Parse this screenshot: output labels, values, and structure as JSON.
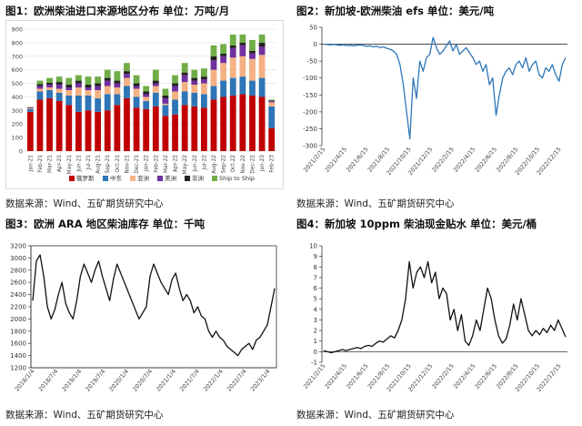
{
  "panels": [
    {
      "title": "图1：欧洲柴油进口来源地区分布  单位：万吨/月",
      "source": "数据来源：Wind、五矿期货研究中心"
    },
    {
      "title": "图2：新加坡-欧洲柴油 efs  单位：美元/吨",
      "source": "数据来源：Wind、五矿期货研究中心"
    },
    {
      "title": "图3：欧洲 ARA 地区柴油库存  单位：千吨",
      "source": "数据来源：Wind、五矿期货研究中心"
    },
    {
      "title": "图4：新加坡 10ppm 柴油现金贴水  单位：美元/桶",
      "source": "数据来源：Wind、五矿期货研究中心"
    }
  ],
  "chart_data": [
    {
      "type": "bar",
      "stacked": true,
      "categories": [
        "Jan-21",
        "Feb-21",
        "Mar-21",
        "Apr-21",
        "May-21",
        "Jun-21",
        "Jul-21",
        "Aug-21",
        "Sep-21",
        "Oct-21",
        "Nov-21",
        "Dec-21",
        "Jan-22",
        "Feb-22",
        "Mar-22",
        "Apr-22",
        "May-22",
        "Jun-22",
        "Jul-22",
        "Aug-22",
        "Sep-22",
        "Oct-22",
        "Nov-22",
        "Dec-22",
        "Jan-23",
        "Feb-23"
      ],
      "series": [
        {
          "name": "俄罗斯",
          "color": "#c00000",
          "values": [
            290,
            380,
            390,
            370,
            340,
            290,
            300,
            290,
            300,
            340,
            390,
            320,
            310,
            330,
            260,
            270,
            340,
            330,
            320,
            380,
            400,
            410,
            420,
            410,
            400,
            170
          ]
        },
        {
          "name": "中东",
          "color": "#2e75b6",
          "values": [
            20,
            60,
            60,
            60,
            70,
            120,
            110,
            100,
            120,
            80,
            90,
            80,
            60,
            100,
            80,
            110,
            100,
            100,
            100,
            100,
            120,
            130,
            130,
            110,
            140,
            160
          ]
        },
        {
          "name": "亚洲",
          "color": "#f4b183",
          "values": [
            5,
            20,
            20,
            30,
            40,
            60,
            40,
            60,
            60,
            50,
            60,
            60,
            30,
            50,
            10,
            60,
            70,
            60,
            80,
            120,
            130,
            150,
            150,
            160,
            170,
            30
          ]
        },
        {
          "name": "美洲",
          "color": "#7030a0",
          "values": [
            5,
            20,
            20,
            30,
            20,
            30,
            20,
            30,
            40,
            30,
            30,
            20,
            20,
            20,
            40,
            40,
            50,
            30,
            30,
            70,
            50,
            70,
            80,
            40,
            60,
            10
          ]
        },
        {
          "name": "非洲",
          "color": "#222222",
          "values": [
            3,
            15,
            15,
            20,
            20,
            20,
            20,
            20,
            20,
            20,
            20,
            20,
            20,
            20,
            20,
            20,
            20,
            20,
            20,
            30,
            20,
            20,
            20,
            20,
            30,
            3
          ]
        },
        {
          "name": "Ship to Ship",
          "color": "#70ad47",
          "values": [
            2,
            25,
            35,
            40,
            50,
            40,
            60,
            50,
            60,
            70,
            60,
            60,
            40,
            80,
            50,
            60,
            70,
            60,
            60,
            80,
            70,
            80,
            60,
            80,
            60,
            7
          ]
        }
      ],
      "ylim": [
        0,
        900
      ],
      "yticks": [
        0,
        100,
        200,
        300,
        400,
        500,
        600,
        700,
        800,
        900
      ],
      "legend_position": "bottom"
    },
    {
      "type": "line",
      "color": "#2e75b6",
      "ylim": [
        -300,
        50
      ],
      "yticks": [
        50,
        0,
        -50,
        -100,
        -150,
        -200,
        -250,
        -300
      ],
      "xticks": [
        "2021/2/15",
        "2021/4/15",
        "2021/6/15",
        "2021/8/15",
        "2021/10/15",
        "2021/12/15",
        "2022/2/15",
        "2022/4/15",
        "2022/6/15",
        "2022/8/15",
        "2022/10/15",
        "2022/12/15"
      ],
      "values": [
        0,
        -1,
        -2,
        -1,
        -2,
        -3,
        -2,
        -4,
        -3,
        -5,
        -3,
        -2,
        -4,
        -6,
        -5,
        -8,
        -6,
        -10,
        -8,
        -12,
        -15,
        -20,
        -30,
        -60,
        -120,
        -200,
        -280,
        -100,
        -160,
        -50,
        -80,
        -40,
        -30,
        20,
        -10,
        -30,
        -20,
        -5,
        10,
        -20,
        0,
        -30,
        -20,
        -10,
        -25,
        -40,
        -60,
        -50,
        -80,
        -60,
        -120,
        -100,
        -210,
        -150,
        -100,
        -80,
        -70,
        -90,
        -60,
        -50,
        -70,
        -40,
        -80,
        -60,
        -50,
        -90,
        -100,
        -70,
        -80,
        -60,
        -90,
        -110,
        -60,
        -40
      ]
    },
    {
      "type": "line",
      "color": "#111111",
      "ylim": [
        1200,
        3200
      ],
      "yticks": [
        3200,
        3000,
        2800,
        2600,
        2400,
        2200,
        2000,
        1800,
        1600,
        1400,
        1200
      ],
      "xticks": [
        "2018/1/4",
        "2018/7/4",
        "2019/1/4",
        "2019/7/4",
        "2020/1/4",
        "2020/7/4",
        "2021/1/4",
        "2021/7/4",
        "2022/1/4",
        "2022/7/4",
        "2023/1/4"
      ],
      "values": [
        2300,
        2950,
        3050,
        2700,
        2200,
        2000,
        2150,
        2400,
        2600,
        2250,
        2100,
        2000,
        2300,
        2700,
        2900,
        2750,
        2600,
        2800,
        2950,
        2700,
        2500,
        2300,
        2650,
        2900,
        2750,
        2600,
        2450,
        2300,
        2150,
        2000,
        2100,
        2200,
        2700,
        2900,
        2750,
        2600,
        2500,
        2400,
        2650,
        2750,
        2500,
        2300,
        2400,
        2300,
        2100,
        2200,
        2050,
        2000,
        1800,
        1700,
        1800,
        1700,
        1650,
        1550,
        1500,
        1450,
        1400,
        1500,
        1550,
        1600,
        1500,
        1650,
        1700,
        1800,
        1900,
        2200,
        2500
      ]
    },
    {
      "type": "line",
      "color": "#111111",
      "ylim": [
        -1,
        10
      ],
      "yticks": [
        10,
        9,
        8,
        7,
        6,
        5,
        4,
        3,
        2,
        1,
        0,
        -1
      ],
      "xticks": [
        "2021/2/15",
        "2021/4/15",
        "2021/6/15",
        "2021/8/15",
        "2021/10/15",
        "2021/12/15",
        "2022/2/15",
        "2022/4/15",
        "2022/6/15",
        "2022/8/15",
        "2022/10/15",
        "2022/12/15"
      ],
      "values": [
        0.1,
        0,
        -0.1,
        0,
        0.1,
        0.2,
        0.1,
        0.2,
        0.3,
        0.4,
        0.3,
        0.5,
        0.6,
        0.5,
        0.8,
        1.0,
        0.9,
        1.2,
        1.5,
        1.3,
        2.0,
        3.0,
        5.0,
        8.5,
        6.0,
        7.5,
        8.0,
        7.0,
        8.5,
        6.5,
        7.5,
        5.0,
        6.0,
        5.5,
        3.0,
        4.0,
        2.0,
        3.5,
        1.0,
        0.6,
        1.5,
        3.0,
        2.0,
        4.0,
        6.0,
        5.0,
        3.0,
        1.5,
        0.8,
        1.2,
        2.5,
        4.5,
        3.0,
        5.0,
        3.5,
        2.0,
        1.5,
        2.0,
        1.6,
        2.2,
        1.8,
        2.5,
        2.0,
        3.0,
        2.2,
        1.4
      ]
    }
  ]
}
